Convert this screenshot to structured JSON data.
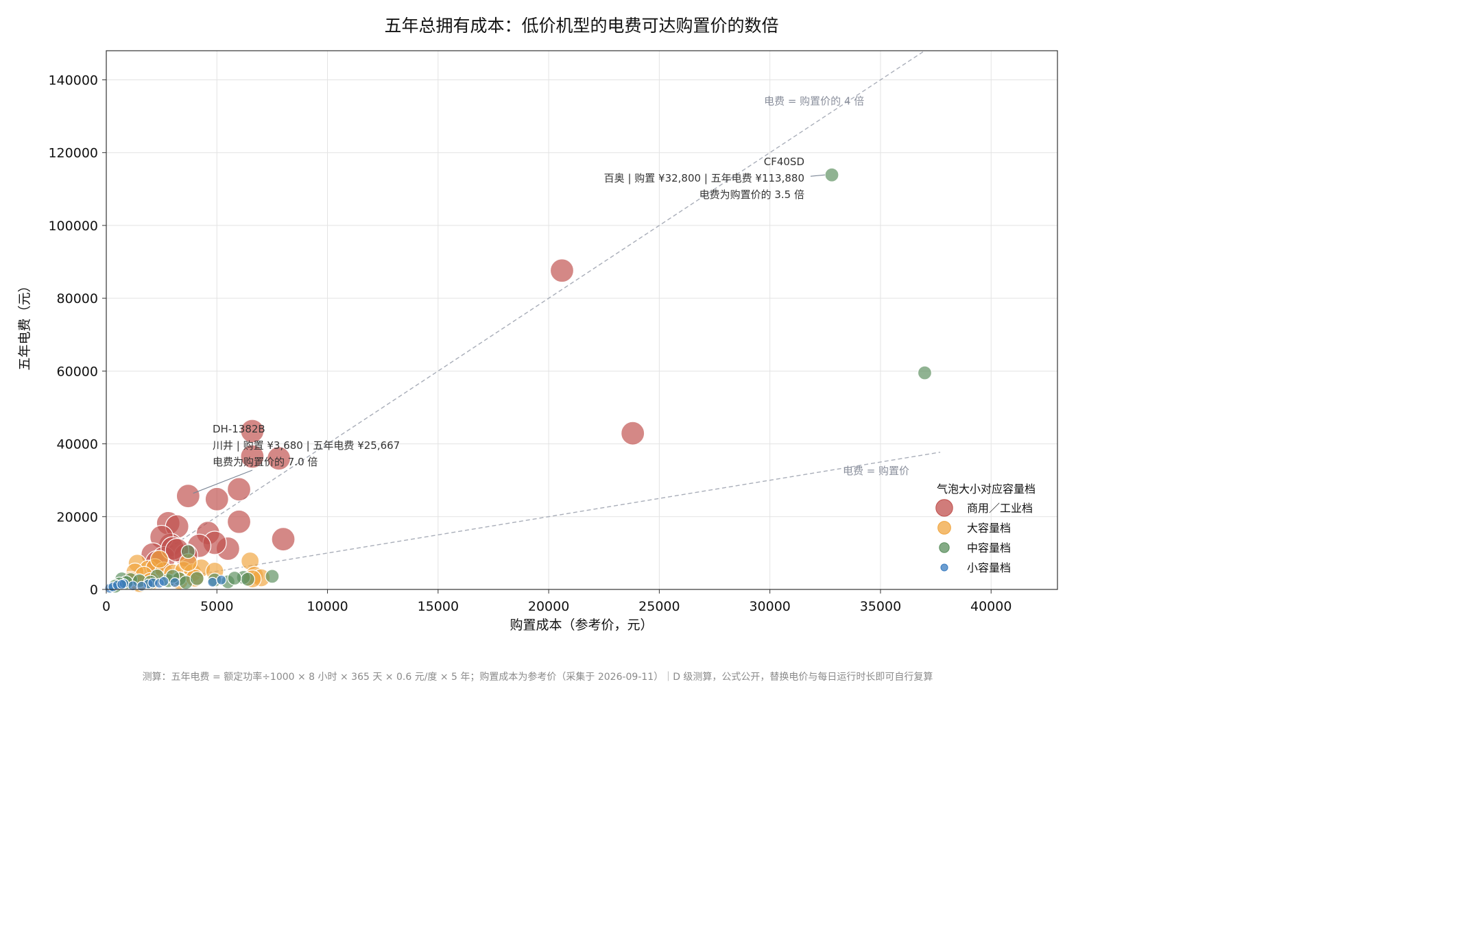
{
  "chart_data": {
    "type": "scatter",
    "title": "五年总拥有成本：低价机型的电费可达购置价的数倍",
    "xlabel": "购置成本（参考价，元）",
    "ylabel": "五年电费（元）",
    "xlim": [
      0,
      43000
    ],
    "ylim": [
      0,
      148000
    ],
    "xticks": [
      0,
      5000,
      10000,
      15000,
      20000,
      25000,
      30000,
      35000,
      40000
    ],
    "yticks": [
      0,
      20000,
      40000,
      60000,
      80000,
      100000,
      120000,
      140000
    ],
    "grid": true,
    "legend": {
      "title": "气泡大小对应容量档",
      "placement": "bottom-right"
    },
    "reference_lines": [
      {
        "slope": 1,
        "x_range": [
          0,
          37700
        ],
        "label": "电费 = 购置价"
      },
      {
        "slope": 4,
        "x_range": [
          0,
          37000
        ],
        "label": "电费 = 购置价的 4 倍"
      }
    ],
    "series": [
      {
        "name": "商用／工业档",
        "color": "#c0504d",
        "radius_px": 17,
        "points": [
          [
            20600,
            87600
          ],
          [
            23800,
            42900
          ],
          [
            6600,
            43500
          ],
          [
            6600,
            36500
          ],
          [
            7800,
            36000
          ],
          [
            3700,
            25667
          ],
          [
            5000,
            24800
          ],
          [
            6000,
            27500
          ],
          [
            2800,
            18200
          ],
          [
            3200,
            17300
          ],
          [
            6000,
            18600
          ],
          [
            8000,
            13800
          ],
          [
            5500,
            11200
          ],
          [
            4600,
            15500
          ],
          [
            4900,
            12800
          ],
          [
            4200,
            12000
          ],
          [
            2900,
            12200
          ],
          [
            2500,
            14400
          ],
          [
            2100,
            9600
          ],
          [
            2600,
            8600
          ],
          [
            2300,
            7500
          ],
          [
            3600,
            9400
          ],
          [
            3000,
            11300
          ],
          [
            3200,
            10800
          ]
        ]
      },
      {
        "name": "大容量档",
        "color": "#f0a540",
        "radius_px": 13,
        "points": [
          [
            1400,
            7200
          ],
          [
            1900,
            5600
          ],
          [
            2200,
            6000
          ],
          [
            1300,
            4800
          ],
          [
            1700,
            3900
          ],
          [
            2600,
            5100
          ],
          [
            3000,
            4500
          ],
          [
            3500,
            5200
          ],
          [
            3900,
            4600
          ],
          [
            4300,
            5900
          ],
          [
            4900,
            5000
          ],
          [
            6500,
            7800
          ],
          [
            6700,
            3900
          ],
          [
            7000,
            3200
          ],
          [
            6600,
            2900
          ],
          [
            1100,
            2500
          ],
          [
            2000,
            2200
          ],
          [
            1500,
            1600
          ],
          [
            3300,
            2400
          ],
          [
            4000,
            3100
          ],
          [
            3700,
            7400
          ],
          [
            2400,
            8300
          ]
        ]
      },
      {
        "name": "中容量档",
        "color": "#5b8f5e",
        "radius_px": 10,
        "points": [
          [
            32800,
            113880
          ],
          [
            37000,
            59500
          ],
          [
            3700,
            10400
          ],
          [
            700,
            2900
          ],
          [
            1100,
            2700
          ],
          [
            900,
            1900
          ],
          [
            1500,
            2400
          ],
          [
            2300,
            3700
          ],
          [
            2800,
            2400
          ],
          [
            3300,
            2900
          ],
          [
            3600,
            1900
          ],
          [
            4100,
            3000
          ],
          [
            5500,
            2100
          ],
          [
            6200,
            3300
          ],
          [
            6400,
            2800
          ],
          [
            7500,
            3600
          ],
          [
            5800,
            3100
          ],
          [
            4900,
            2600
          ],
          [
            3000,
            3600
          ],
          [
            2000,
            2000
          ],
          [
            600,
            1500
          ],
          [
            400,
            900
          ]
        ]
      },
      {
        "name": "小容量档",
        "color": "#3a7cc0",
        "radius_px": 7,
        "points": [
          [
            150,
            300
          ],
          [
            300,
            700
          ],
          [
            500,
            1200
          ],
          [
            800,
            1600
          ],
          [
            1200,
            1000
          ],
          [
            1900,
            1500
          ],
          [
            2100,
            1800
          ],
          [
            2400,
            1700
          ],
          [
            2600,
            2200
          ],
          [
            3100,
            1900
          ],
          [
            4800,
            2000
          ],
          [
            5200,
            2600
          ],
          [
            1600,
            900
          ],
          [
            700,
            1400
          ]
        ]
      }
    ],
    "annotations": [
      {
        "point": [
          3680,
          25667
        ],
        "lines": [
          "DH-1382B",
          "川井 | 购置 ¥3,680 | 五年电费 ¥25,667",
          "电费为购置价的 7.0 倍"
        ],
        "align": "left"
      },
      {
        "point": [
          32800,
          113880
        ],
        "lines": [
          "CF40SD",
          "百奥 | 购置 ¥32,800 | 五年电费 ¥113,880",
          "电费为购置价的 3.5 倍"
        ],
        "align": "right"
      }
    ],
    "footnote": "测算：五年电费 = 额定功率÷1000 × 8 小时 × 365 天 × 0.6 元/度 × 5 年；购置成本为参考价（采集于 2026-09-11）｜D 级测算，公式公开，替换电价与每日运行时长即可自行复算"
  }
}
